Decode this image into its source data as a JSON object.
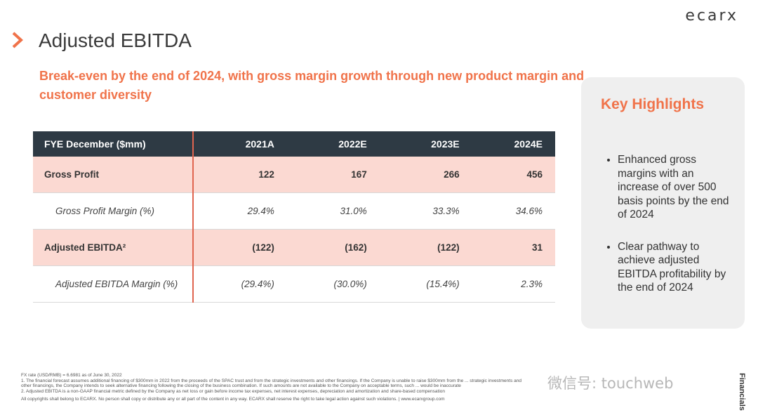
{
  "brand": {
    "logo_text": "ecarx",
    "accent_color": "#f0734a",
    "table_header_color": "#2e3a44",
    "highlight_row_color": "#fbd9d2"
  },
  "slide": {
    "title": "Adjusted EBITDA",
    "subtitle": "Break-even by the end of 2024, with gross margin growth through new product margin and customer diversity"
  },
  "table": {
    "header": [
      "FYE December ($mm)",
      "2021A",
      "2022E",
      "2023E",
      "2024E"
    ],
    "rows": [
      {
        "label": "Gross Profit",
        "values": [
          "122",
          "167",
          "266",
          "456"
        ]
      },
      {
        "label": "Gross Profit Margin (%)",
        "values": [
          "29.4%",
          "31.0%",
          "33.3%",
          "34.6%"
        ]
      },
      {
        "label": "Adjusted EBITDA²",
        "values": [
          "(122)",
          "(162)",
          "(122)",
          "31"
        ]
      },
      {
        "label": "Adjusted EBITDA Margin (%)",
        "values": [
          "(29.4%)",
          "(30.0%)",
          "(15.4%)",
          "2.3%"
        ]
      }
    ]
  },
  "highlights": {
    "title": "Key Highlights",
    "items": [
      "Enhanced gross margins with an increase of over 500 basis points by the end of 2024",
      "Clear pathway to achieve adjusted EBITDA profitability by the end of 2024"
    ]
  },
  "footnotes": {
    "fx": "FX rate (USD/RMB) = 6.6981 as of June 30, 2022",
    "note1": "1.    The financial forecast assumes additional financing of $300mm in 2022 from the proceeds of the SPAC trust and from the strategic investments and other financings. If the Company is unable to raise $300mm from the ... strategic investments and other financings, the Company intends to seek alternative financing following the closing of the business combination. If such amounts are not available to the Company on acceptable terms, such ... would be inaccurate",
    "note2": "2.    Adjusted EBITDA is a non-GAAP financial metric defined by the Company as net loss or gain before income tax expenses, net interest expenses, depreciation and amortization and share-based compensation",
    "copyright": "All copyrights shall belong to ECARX.  No person shall copy or distribute any or all part of the content in any way.  ECARX shall reserve the right to take legal action against such violations.  | www.ecarxgroup.com"
  },
  "watermark": "微信号: touchweb",
  "section_label": "Financials"
}
